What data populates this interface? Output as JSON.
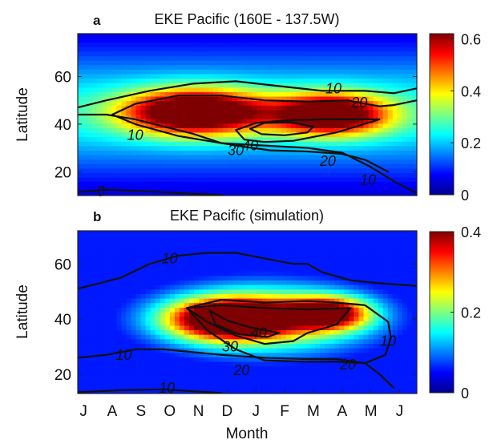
{
  "colors": {
    "colormap": [
      "#00008f",
      "#0000ff",
      "#007fff",
      "#00ffff",
      "#7fff7f",
      "#ffff00",
      "#ff7f00",
      "#ff0000",
      "#7f0000"
    ],
    "contour": "#111111",
    "axis": "#222222",
    "background": "#ffffff"
  },
  "chart_data": [
    {
      "type": "heatmap",
      "panel_label": "a",
      "title": "EKE Pacific (160E - 137.5W)",
      "xlabel": "",
      "ylabel": "Latitude",
      "x_ticks": [],
      "y_ticks": [
        "20",
        "40",
        "60"
      ],
      "y_tick_values": [
        20,
        40,
        60
      ],
      "xlim": [
        0,
        11.8
      ],
      "ylim": [
        10,
        78
      ],
      "grid": false,
      "colorbar": {
        "ticks": [
          "0",
          "0.2",
          "0.4",
          "0.6"
        ],
        "tick_values": [
          0,
          0.2,
          0.4,
          0.6
        ],
        "range": [
          0,
          0.62
        ]
      },
      "fill_field": {
        "peaks": [
          {
            "month": 4.1,
            "lat": 45,
            "amp": 0.6,
            "sx": 1.7,
            "sy": 6.5
          },
          {
            "month": 8.8,
            "lat": 44,
            "amp": 0.55,
            "sx": 1.4,
            "sy": 6.0
          }
        ],
        "base": 0.24,
        "base_lat": 45,
        "base_sy": 20,
        "floor": 0.05
      },
      "contours": [
        {
          "level": "0",
          "points": [
            [
              0.0,
              11.5
            ],
            [
              1.0,
              12.5
            ],
            [
              2.5,
              11.8
            ],
            [
              4.0,
              10.7
            ],
            [
              5.0,
              10.2
            ]
          ]
        },
        {
          "level": "10",
          "points": [
            [
              0.0,
              44
            ],
            [
              1.0,
              44
            ],
            [
              2.0,
              42
            ],
            [
              3.0,
              39
            ],
            [
              4.0,
              36
            ],
            [
              5.0,
              32
            ],
            [
              6.5,
              31
            ],
            [
              8.0,
              30
            ],
            [
              9.2,
              28
            ],
            [
              10.2,
              22
            ],
            [
              11.0,
              16
            ],
            [
              11.8,
              11
            ]
          ]
        },
        {
          "level": "10",
          "points": [
            [
              0.0,
              47
            ],
            [
              1.0,
              50
            ],
            [
              2.5,
              54
            ],
            [
              4.0,
              57
            ],
            [
              5.5,
              58
            ],
            [
              7.0,
              56
            ],
            [
              8.5,
              54
            ],
            [
              10.0,
              54
            ],
            [
              11.0,
              53
            ],
            [
              11.8,
              55
            ]
          ]
        },
        {
          "level": "20",
          "points": [
            [
              1.2,
              44
            ],
            [
              2.0,
              48.5
            ],
            [
              3.5,
              52
            ],
            [
              5.0,
              52
            ],
            [
              6.5,
              50
            ],
            [
              8.0,
              49.5
            ],
            [
              9.4,
              50
            ],
            [
              10.0,
              48.5
            ],
            [
              10.5,
              47.5
            ],
            [
              11.0,
              48
            ],
            [
              11.8,
              50
            ]
          ]
        },
        {
          "level": "20",
          "points": [
            [
              1.2,
              44
            ],
            [
              2.0,
              40
            ],
            [
              3.5,
              35
            ],
            [
              5.5,
              31
            ],
            [
              6.7,
              29
            ],
            [
              8.0,
              28.5
            ],
            [
              9.2,
              27.5
            ],
            [
              10.0,
              25
            ],
            [
              10.8,
              20
            ]
          ]
        },
        {
          "level": "30",
          "points": [
            [
              5.5,
              37.5
            ],
            [
              6.2,
              40.5
            ],
            [
              7.2,
              41.5
            ],
            [
              8.5,
              42
            ],
            [
              10.5,
              42
            ],
            [
              9.0,
              36.5
            ],
            [
              7.5,
              33
            ],
            [
              6.5,
              32.5
            ],
            [
              5.8,
              33.5
            ],
            [
              5.5,
              37.5
            ]
          ]
        },
        {
          "level": "40",
          "points": [
            [
              6.0,
              38
            ],
            [
              6.5,
              40.5
            ],
            [
              7.4,
              40.8
            ],
            [
              8.2,
              39
            ],
            [
              8.0,
              36.5
            ],
            [
              7.2,
              35.3
            ],
            [
              6.4,
              35.8
            ],
            [
              6.0,
              38
            ]
          ]
        }
      ],
      "contour_labels": [
        {
          "text": "10",
          "month": 8.9,
          "lat": 55
        },
        {
          "text": "20",
          "month": 9.8,
          "lat": 49
        },
        {
          "text": "10",
          "month": 2.0,
          "lat": 35.5
        },
        {
          "text": "30",
          "month": 5.5,
          "lat": 29
        },
        {
          "text": "40",
          "month": 6.0,
          "lat": 31
        },
        {
          "text": "20",
          "month": 8.7,
          "lat": 24.5
        },
        {
          "text": "10",
          "month": 10.1,
          "lat": 16.5
        },
        {
          "text": "0",
          "month": 0.8,
          "lat": 11.7
        }
      ]
    },
    {
      "type": "heatmap",
      "panel_label": "b",
      "title": "EKE Pacific (simulation)",
      "xlabel": "Month",
      "ylabel": "Latitude",
      "x_ticks": [
        "J",
        "A",
        "S",
        "O",
        "N",
        "D",
        "J",
        "F",
        "M",
        "A",
        "M",
        "J"
      ],
      "x_tick_values": [
        0.2,
        1.2,
        2.2,
        3.2,
        4.2,
        5.2,
        6.2,
        7.2,
        8.2,
        9.2,
        10.2,
        11.2
      ],
      "y_ticks": [
        "20",
        "40",
        "60"
      ],
      "y_tick_values": [
        20,
        40,
        60
      ],
      "xlim": [
        0,
        11.8
      ],
      "ylim": [
        13,
        72
      ],
      "grid": false,
      "colorbar": {
        "ticks": [
          "0",
          "0.2",
          "0.4"
        ],
        "tick_values": [
          0,
          0.2,
          0.4
        ],
        "range": [
          0,
          0.4
        ]
      },
      "fill_field": {
        "peaks": [
          {
            "month": 5.3,
            "lat": 40,
            "amp": 0.4,
            "sx": 1.4,
            "sy": 4.8
          },
          {
            "month": 8.7,
            "lat": 42,
            "amp": 0.32,
            "sx": 1.0,
            "sy": 4.0
          },
          {
            "month": 6.5,
            "lat": 40,
            "amp": 0.25,
            "sx": 3.0,
            "sy": 10.0
          }
        ],
        "base": 0.0,
        "base_lat": 40,
        "base_sy": 20,
        "floor": 0.06
      },
      "contours": [
        {
          "level": "10",
          "points": [
            [
              0.0,
              51
            ],
            [
              1.5,
              55
            ],
            [
              2.5,
              60
            ],
            [
              3.5,
              63
            ],
            [
              4.5,
              64
            ],
            [
              5.5,
              64
            ],
            [
              6.5,
              62
            ],
            [
              7.5,
              60
            ],
            [
              8.0,
              60
            ],
            [
              8.5,
              57
            ],
            [
              9.5,
              54
            ],
            [
              10.5,
              53
            ],
            [
              11.8,
              52
            ]
          ]
        },
        {
          "level": "10",
          "points": [
            [
              0.0,
              26
            ],
            [
              1.0,
              27
            ],
            [
              2.0,
              29
            ],
            [
              3.0,
              29
            ],
            [
              4.0,
              28
            ],
            [
              5.0,
              27
            ],
            [
              6.5,
              26
            ],
            [
              8.0,
              25.5
            ],
            [
              9.0,
              25.5
            ],
            [
              10.0,
              24
            ],
            [
              10.5,
              20
            ],
            [
              11.0,
              15
            ]
          ]
        },
        {
          "level": "10",
          "points": [
            [
              0.0,
              13.5
            ],
            [
              1.5,
              14.2
            ],
            [
              3.0,
              14.5
            ],
            [
              4.0,
              13.8
            ],
            [
              5.0,
              13.2
            ]
          ]
        },
        {
          "level": "20",
          "points": [
            [
              3.8,
              44
            ],
            [
              5.0,
              47
            ],
            [
              6.5,
              46
            ],
            [
              8.0,
              46.5
            ],
            [
              9.0,
              46
            ],
            [
              10.0,
              45
            ],
            [
              10.8,
              39
            ],
            [
              10.9,
              33
            ],
            [
              10.7,
              27
            ]
          ]
        },
        {
          "level": "20",
          "points": [
            [
              3.8,
              44
            ],
            [
              4.5,
              36
            ],
            [
              5.5,
              29
            ],
            [
              6.5,
              25
            ],
            [
              8.0,
              24.5
            ],
            [
              9.0,
              24.5
            ],
            [
              10.0,
              24
            ],
            [
              10.7,
              27
            ]
          ]
        },
        {
          "level": "30",
          "points": [
            [
              3.8,
              44
            ],
            [
              5.0,
              45
            ],
            [
              6.5,
              44
            ],
            [
              8.0,
              43.5
            ],
            [
              9.5,
              44
            ],
            [
              9.0,
              38
            ],
            [
              8.0,
              35
            ],
            [
              7.5,
              32
            ],
            [
              6.5,
              31
            ],
            [
              5.5,
              34
            ],
            [
              4.5,
              39
            ],
            [
              3.8,
              44
            ]
          ]
        },
        {
          "level": "40",
          "points": [
            [
              4.6,
              43
            ],
            [
              5.2,
              39.5
            ],
            [
              6.0,
              37
            ],
            [
              7.0,
              35
            ],
            [
              6.6,
              33.5
            ],
            [
              5.6,
              34.5
            ],
            [
              4.8,
              38
            ],
            [
              4.6,
              43
            ]
          ]
        }
      ],
      "contour_labels": [
        {
          "text": "10",
          "month": 3.2,
          "lat": 62
        },
        {
          "text": "10",
          "month": 1.6,
          "lat": 27
        },
        {
          "text": "40",
          "month": 6.3,
          "lat": 35
        },
        {
          "text": "30",
          "month": 5.3,
          "lat": 30
        },
        {
          "text": "20",
          "month": 5.7,
          "lat": 21.5
        },
        {
          "text": "20",
          "month": 9.4,
          "lat": 23.5
        },
        {
          "text": "10",
          "month": 10.8,
          "lat": 32
        },
        {
          "text": "10",
          "month": 3.1,
          "lat": 15
        }
      ]
    }
  ]
}
